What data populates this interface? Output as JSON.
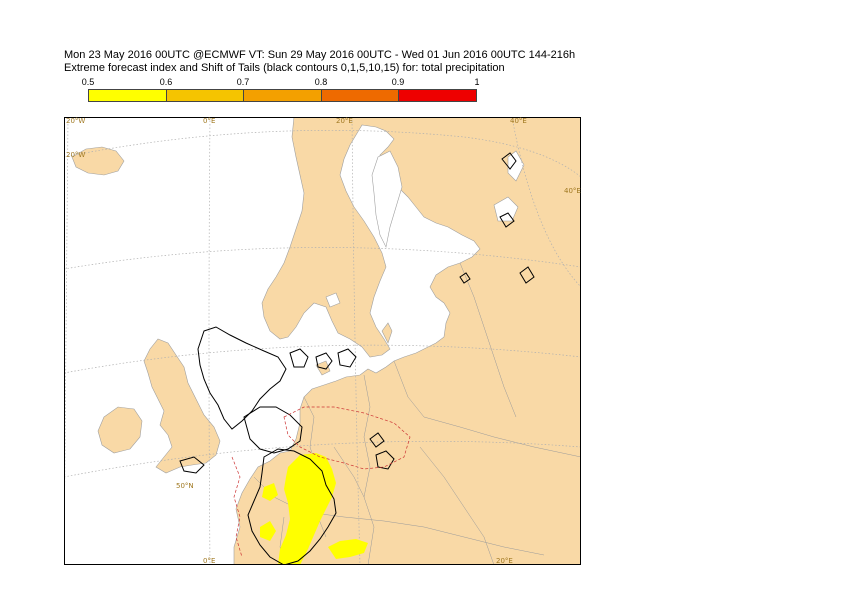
{
  "title": {
    "line1": "Mon 23 May 2016 00UTC @ECMWF VT: Sun 29 May 2016 00UTC - Wed 01 Jun 2016 00UTC  144-216h",
    "line2": "Extreme forecast index and Shift of Tails (black contours 0,1,5,10,15) for: total precipitation"
  },
  "colorbar": {
    "labels": [
      "0.5",
      "0.6",
      "0.7",
      "0.8",
      "0.9",
      "1"
    ],
    "colors": [
      "#ffff00",
      "#f5c400",
      "#f3a000",
      "#ee6a00",
      "#ee0000"
    ]
  },
  "map": {
    "land_color": "#f9d9a6",
    "sea_color": "#ffffff",
    "border_color": "#9a9a9a",
    "efi_color": "#ffff00",
    "sot_contour_color": "#000000",
    "grid_labels": {
      "top": [
        "20°W",
        "0°E",
        "20°E",
        "40°E"
      ],
      "left": [
        "20°W",
        "50°N"
      ],
      "right": [
        "40°E"
      ],
      "bottom": [
        "0°E",
        "20°E"
      ]
    }
  }
}
